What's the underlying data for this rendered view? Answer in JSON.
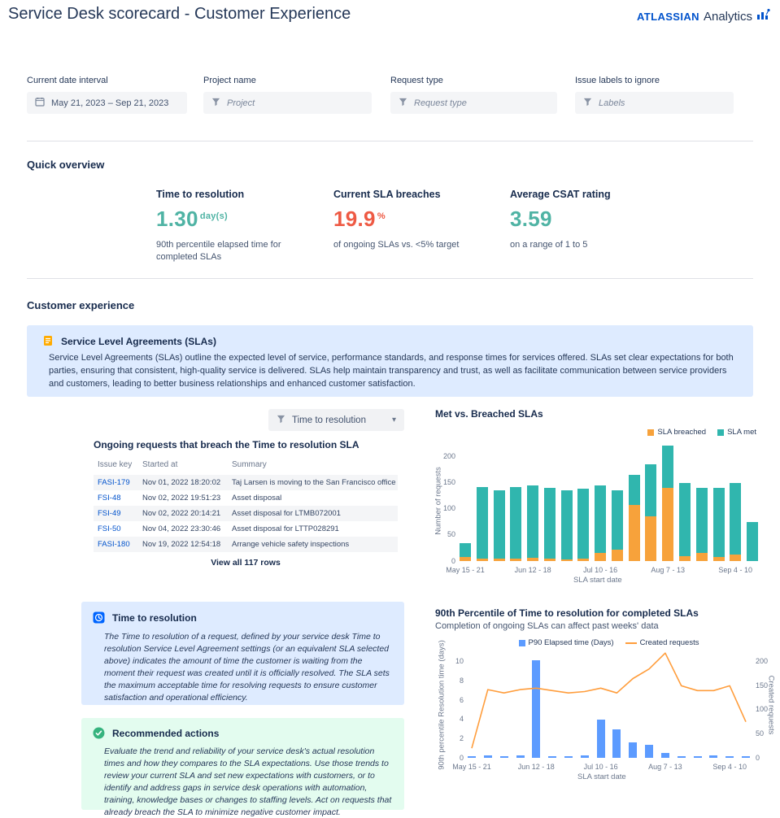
{
  "header": {
    "title": "Service Desk scorecard - Customer Experience",
    "brand": "ATLASSIAN",
    "brand_suffix": "Analytics"
  },
  "accent_colors": {
    "teal": "#4FB3A4",
    "red": "#EE5A44",
    "link_blue": "#0052CC",
    "panel_blue": "#DEEBFF",
    "panel_green": "#E3FCEF",
    "bar_teal": "#30B6AE",
    "bar_orange": "#F7A23B",
    "bar_blue": "#5C9BFF",
    "line_orange": "#FF9D3C"
  },
  "filters": [
    {
      "label": "Current date interval",
      "value": "May 21, 2023 – Sep 21, 2023"
    },
    {
      "label": "Project name",
      "placeholder": "Project"
    },
    {
      "label": "Request type",
      "placeholder": "Request type"
    },
    {
      "label": "Issue labels to ignore",
      "placeholder": "Labels"
    }
  ],
  "sections": {
    "quick_overview": "Quick overview",
    "customer_experience": "Customer experience"
  },
  "kpis": [
    {
      "label": "Time to resolution",
      "value": "1.30",
      "unit": "day(s)",
      "desc": "90th percentile elapsed time for completed SLAs"
    },
    {
      "label": "Current SLA breaches",
      "value": "19.9",
      "unit": "%",
      "desc": "of ongoing SLAs vs. <5% target"
    },
    {
      "label": "Average CSAT rating",
      "value": "3.59",
      "unit": "",
      "desc": "on a range of 1 to 5"
    }
  ],
  "sla_panel": {
    "title": "Service Level Agreements (SLAs)",
    "body": "Service Level Agreements (SLAs) outline the expected level of service, performance standards, and response times for services offered. SLAs set clear expectations for both parties, ensuring that consistent, high-quality service is delivered. SLAs help maintain transparency and trust, as well as facilitate communication between service providers and customers, leading to better business relationships and enhanced customer satisfaction."
  },
  "dropdown": {
    "value": "Time to resolution"
  },
  "table": {
    "title": "Ongoing requests that breach the Time to resolution SLA",
    "columns": [
      "Issue key",
      "Started at",
      "Summary"
    ],
    "rows": [
      [
        "FASI-179",
        "Nov 01, 2022 18:20:02",
        "Taj Larsen is moving to the San Francisco office"
      ],
      [
        "FSI-48",
        "Nov 02, 2022 19:51:23",
        "Asset disposal"
      ],
      [
        "FSI-49",
        "Nov 02, 2022 20:14:21",
        "Asset disposal for LTMB072001"
      ],
      [
        "FSI-50",
        "Nov 04, 2022 23:30:46",
        "Asset disposal for LTTP028291"
      ],
      [
        "FASI-180",
        "Nov 19, 2022 12:54:18",
        "Arrange vehicle safety inspections"
      ]
    ],
    "footer": "View all 117 rows"
  },
  "ttr_panel": {
    "title": "Time to resolution",
    "body": "The Time to resolution of a request, defined by your service desk Time to resolution Service Level Agreement settings (or an equivalent SLA selected above) indicates the amount of time the customer is waiting from the moment their request was created until it is officially resolved. The SLA sets the maximum acceptable time for resolving requests to ensure customer satisfaction and operational efficiency."
  },
  "actions_panel": {
    "title": "Recommended actions",
    "body": "Evaluate the trend and reliability of your service desk's actual resolution times and how they compares to the SLA expectations. Use those trends to review your current SLA and set new expectations with customers, or to identify and address gaps in service desk operations with automation, training, knowledge bases or changes to staffing levels. Act on requests that already breach the SLA to minimize negative customer impact."
  },
  "chart_data": [
    {
      "type": "bar",
      "stacked": true,
      "title": "Met vs. Breached SLAs",
      "n_bars": 18,
      "x_tick_labels": [
        "May 15 - 21",
        "Jun 12 - 18",
        "Jul 10 - 16",
        "Aug 7 - 13",
        "Sep 4 - 10"
      ],
      "x_tick_positions": [
        0,
        4,
        8,
        12,
        16
      ],
      "series": [
        {
          "name": "SLA breached",
          "color": "#F7A23B",
          "values": [
            8,
            5,
            4,
            4,
            6,
            4,
            3,
            4,
            15,
            22,
            108,
            85,
            140,
            10,
            15,
            8,
            12,
            0
          ]
        },
        {
          "name": "SLA met",
          "color": "#30B6AE",
          "values": [
            27,
            137,
            131,
            138,
            139,
            136,
            132,
            134,
            130,
            113,
            57,
            100,
            80,
            140,
            125,
            132,
            138,
            75
          ]
        }
      ],
      "ylabel": "Number of requests",
      "xlabel": "SLA start date",
      "ylim": [
        0,
        230
      ],
      "yticks": [
        0,
        50,
        100,
        150,
        200
      ],
      "legend_position": "top-right",
      "grid": false
    },
    {
      "type": "bar+line",
      "title": "90th Percentile of Time to resolution for completed SLAs",
      "subtitle": "Completion of ongoing SLAs can affect past weeks' data",
      "n_bars": 18,
      "x_tick_labels": [
        "May 15 - 21",
        "Jun 12 - 18",
        "Jul 10 - 16",
        "Aug 7 - 13",
        "Sep 4 - 10"
      ],
      "x_tick_positions": [
        0,
        4,
        8,
        12,
        16
      ],
      "bar_series": {
        "name": "P90 Elapsed time (Days)",
        "color": "#5C9BFF",
        "axis": "left",
        "values": [
          0.2,
          0.3,
          0.2,
          0.3,
          10.2,
          0.2,
          0.2,
          0.3,
          4.0,
          3.0,
          1.6,
          1.4,
          0.5,
          0.2,
          0.2,
          0.3,
          0.2,
          0.2
        ]
      },
      "line_series": {
        "name": "Created requests",
        "color": "#FF9D3C",
        "axis": "right",
        "values": [
          20,
          142,
          135,
          142,
          145,
          140,
          135,
          138,
          145,
          135,
          165,
          185,
          218,
          150,
          140,
          140,
          150,
          75
        ]
      },
      "ylabel_left": "90th percentile Resolution time (days)",
      "ylabel_right": "Created requests",
      "xlabel": "SLA start date",
      "ylim_left": [
        0,
        11
      ],
      "yticks_left": [
        0,
        2,
        4,
        6,
        8,
        10
      ],
      "ylim_right": [
        0,
        220
      ],
      "yticks_right": [
        0,
        50,
        100,
        150,
        200
      ],
      "legend_position": "top-center",
      "grid": false
    }
  ]
}
